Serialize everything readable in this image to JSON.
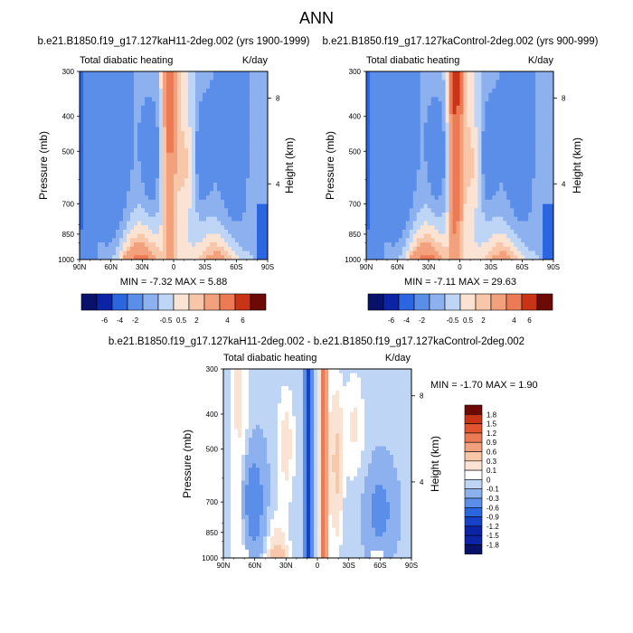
{
  "figure": {
    "main_title": "ANN",
    "colorbar_top_labels": [
      "-6",
      "-4",
      "-2",
      "-0.5",
      "0.5",
      "2",
      "4",
      "6"
    ],
    "colorbar_diff_labels": [
      "1.8",
      "1.5",
      "1.2",
      "0.9",
      "0.6",
      "0.3",
      "0.1",
      "0",
      "-0.1",
      "-0.3",
      "-0.6",
      "-0.9",
      "-1.2",
      "-1.5",
      "-1.8"
    ],
    "colors": {
      "blue_levels": [
        "#08126b",
        "#0d23a6",
        "#1741c9",
        "#2b66e0",
        "#5a8ee8",
        "#8cb1ee",
        "#bed5f5",
        "#dbe9fa"
      ],
      "red_levels": [
        "#fbe3d3",
        "#f8c6a8",
        "#f3a17c",
        "#ec7b55",
        "#e2532f",
        "#c93316",
        "#a01a0c",
        "#6e0a05"
      ]
    }
  },
  "chart_data": [
    {
      "type": "heatmap",
      "panel": "top-left",
      "title": "b.e21.B1850.f19_g17.127kaH11-2deg.002 (yrs 1900-1999)",
      "left_label": "Total diabatic heating",
      "right_label": "K/day",
      "ylabel": "Pressure (mb)",
      "ylabel_right": "Height (km)",
      "x_ticks": [
        "90N",
        "60N",
        "30N",
        "0",
        "30S",
        "60S",
        "90S"
      ],
      "y_ticks": [
        "300",
        "400",
        "500",
        "700",
        "850",
        "1000"
      ],
      "y_ticks_right": [
        "8",
        "4"
      ],
      "xlim": [
        90,
        -90
      ],
      "ylim": [
        1000,
        300
      ],
      "stats": "MIN = -7.32  MAX =   5.88",
      "min": -7.32,
      "max": 5.88
    },
    {
      "type": "heatmap",
      "panel": "top-right",
      "title": "b.e21.B1850.f19_g17.127kaControl-2deg.002 (yrs 900-999)",
      "left_label": "Total diabatic heating",
      "right_label": "K/day",
      "ylabel": "Pressure (mb)",
      "ylabel_right": "Height (km)",
      "x_ticks": [
        "90N",
        "60N",
        "30N",
        "0",
        "30S",
        "60S",
        "90S"
      ],
      "y_ticks": [
        "300",
        "400",
        "500",
        "700",
        "850",
        "1000"
      ],
      "y_ticks_right": [
        "8",
        "4"
      ],
      "xlim": [
        90,
        -90
      ],
      "ylim": [
        1000,
        300
      ],
      "stats": "MIN = -7.11  MAX =  29.63",
      "min": -7.11,
      "max": 29.63
    },
    {
      "type": "heatmap",
      "panel": "bottom-difference",
      "title": "b.e21.B1850.f19_g17.127kaH11-2deg.002 - b.e21.B1850.f19_g17.127kaControl-2deg.002",
      "left_label": "Total diabatic heating",
      "right_label": "K/day",
      "ylabel": "Pressure (mb)",
      "ylabel_right": "Height (km)",
      "x_ticks": [
        "90N",
        "60N",
        "30N",
        "0",
        "30S",
        "60S",
        "90S"
      ],
      "y_ticks": [
        "300",
        "400",
        "500",
        "700",
        "850",
        "1000"
      ],
      "y_ticks_right": [
        "8",
        "4"
      ],
      "xlim": [
        90,
        -90
      ],
      "ylim": [
        1000,
        300
      ],
      "stats": "MIN = -1.70  MAX =   1.90",
      "min": -1.7,
      "max": 1.9
    }
  ]
}
